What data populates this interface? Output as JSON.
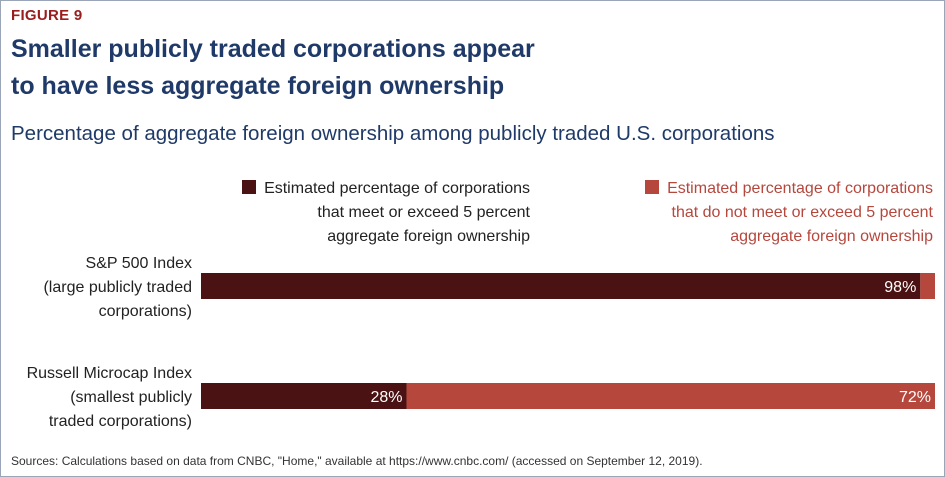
{
  "figure_label": "FIGURE 9",
  "title_lines": [
    "Smaller publicly traded corporations appear",
    "to have less aggregate foreign ownership"
  ],
  "subtitle": "Percentage of aggregate foreign ownership among publicly traded U.S. corporations",
  "legend": [
    {
      "lines": [
        "Estimated percentage of corporations",
        "that meet or exceed 5 percent",
        "aggregate foreign ownership"
      ],
      "color": "#4a1212"
    },
    {
      "lines": [
        "Estimated percentage of corporations",
        "that do not meet or exceed 5 percent",
        "aggregate foreign ownership"
      ],
      "color": "#b5473d"
    }
  ],
  "chart_data": {
    "type": "bar",
    "orientation": "horizontal",
    "stacked": true,
    "categories": [
      [
        "S&P 500 Index",
        "(large publicly traded",
        "corporations)"
      ],
      [
        "Russell Microcap Index",
        "(smallest publicly",
        "traded corporations)"
      ]
    ],
    "series": [
      {
        "name": "Estimated percentage of corporations that meet or exceed 5 percent aggregate foreign ownership",
        "values": [
          98,
          28
        ],
        "labels": [
          "98%",
          "28%"
        ],
        "color": "#4a1212"
      },
      {
        "name": "Estimated percentage of corporations that do not meet or exceed 5 percent aggregate foreign ownership",
        "values": [
          2,
          72
        ],
        "labels": [
          "",
          "72%"
        ],
        "color": "#b5473d"
      }
    ],
    "xlim": [
      0,
      100
    ]
  },
  "source": "Sources: Calculations based on data from CNBC, \"Home,\" available at https://www.cnbc.com/ (accessed on September 12, 2019)."
}
